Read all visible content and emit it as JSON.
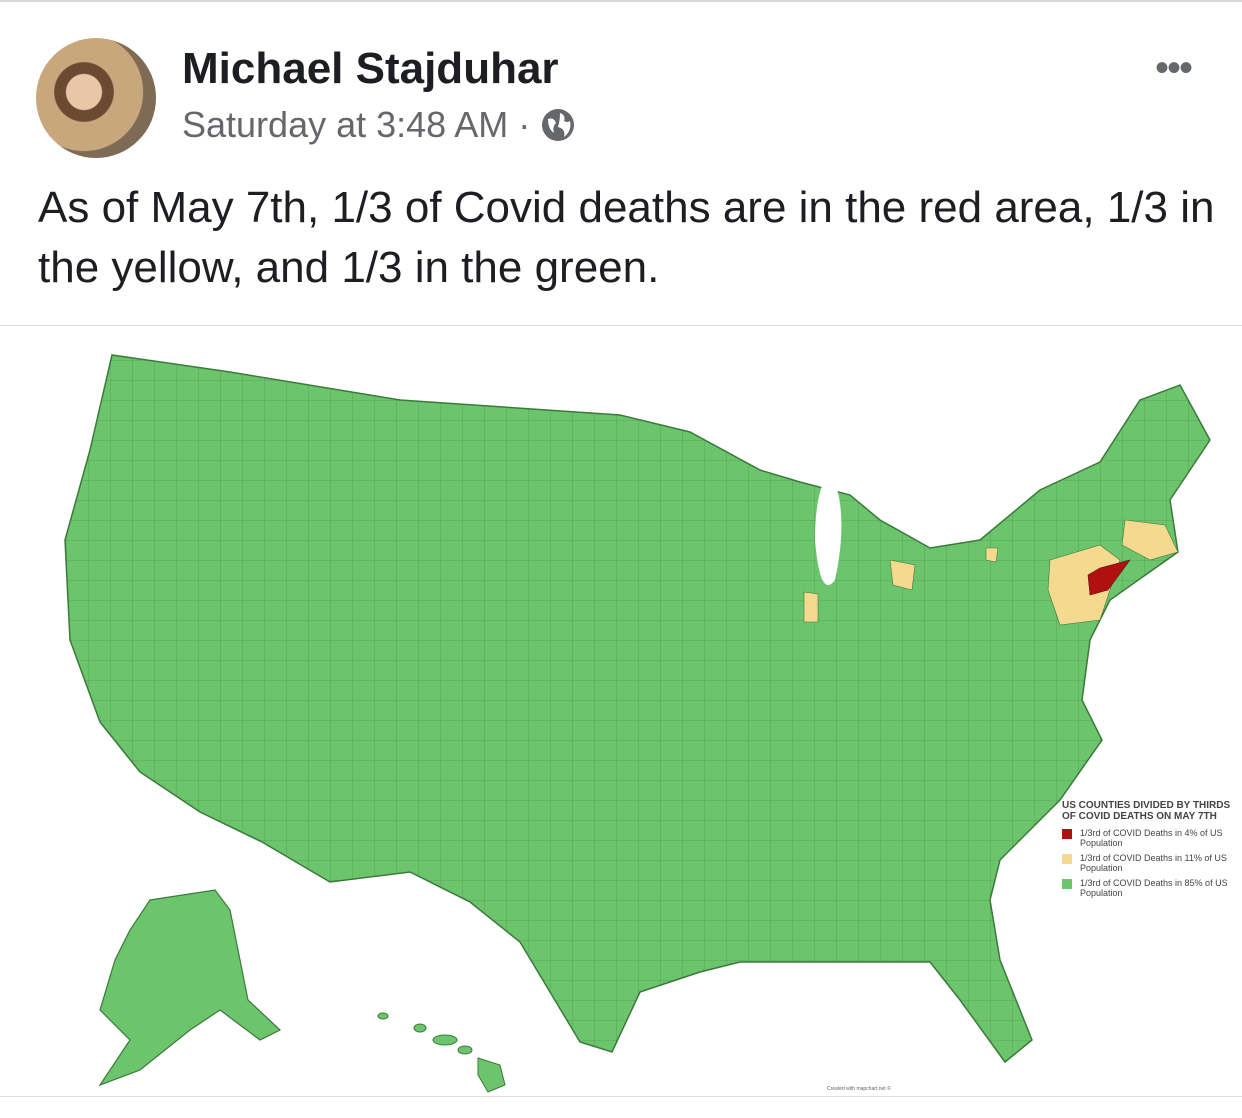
{
  "post": {
    "author": "Michael Stajduhar",
    "timestamp": "Saturday at 3:48 AM",
    "separator": "·",
    "privacy_icon": "globe-icon",
    "more_icon": "more-options-icon",
    "text": "As of May 7th, 1/3 of Covid deaths are in the red area, 1/3 in the yellow, and 1/3 in the green."
  },
  "map": {
    "legend_title": "US COUNTIES DIVIDED BY THIRDS OF COVID DEATHS ON MAY 7TH",
    "legend": [
      {
        "label": "1/3rd of COVID Deaths in 4% of US Population",
        "color": "#b01010"
      },
      {
        "label": "1/3rd of COVID Deaths in 11% of US Population",
        "color": "#f5d98f"
      },
      {
        "label": "1/3rd of COVID Deaths in 85% of US Population",
        "color": "#6cc46c"
      }
    ],
    "credit": "Created with mapchart.net ©"
  }
}
